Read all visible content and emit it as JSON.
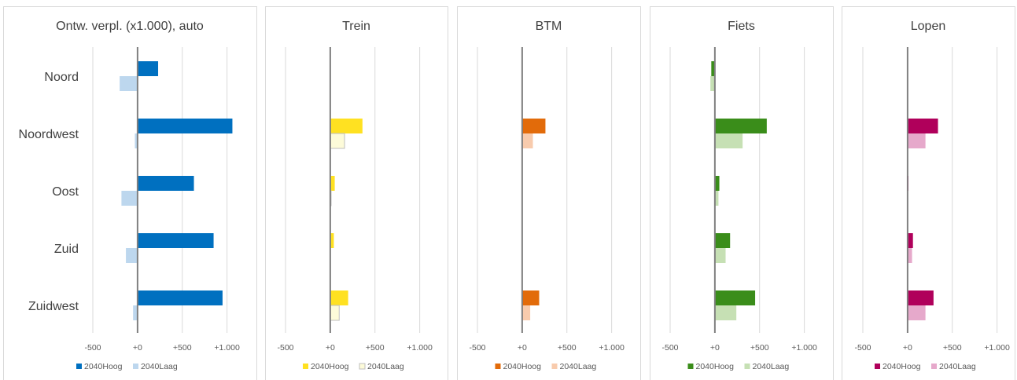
{
  "chart_data": [
    {
      "type": "bar",
      "orientation": "horizontal",
      "title": "Ontw. verpl. (x1.000), auto",
      "categories": [
        "Noord",
        "Noordwest",
        "Oost",
        "Zuid",
        "Zuidwest"
      ],
      "xlim": [
        -500,
        1100
      ],
      "ticks": [
        "-500",
        "+0",
        "+500",
        "+1.000"
      ],
      "tick_values": [
        -500,
        0,
        500,
        1000
      ],
      "grid": true,
      "legend_position": "bottom",
      "series": [
        {
          "name": "2040Hoog",
          "color": "#0070c0",
          "values": [
            230,
            1060,
            630,
            850,
            950
          ]
        },
        {
          "name": "2040Laag",
          "color": "#bdd7ee",
          "values": [
            -200,
            -30,
            -180,
            -130,
            -50
          ]
        }
      ]
    },
    {
      "type": "bar",
      "orientation": "horizontal",
      "title": "Trein",
      "categories": [
        "Noord",
        "Noordwest",
        "Oost",
        "Zuid",
        "Zuidwest"
      ],
      "xlim": [
        -500,
        1100
      ],
      "ticks": [
        "-500",
        "+0",
        "+500",
        "+1.000"
      ],
      "tick_values": [
        -500,
        0,
        500,
        1000
      ],
      "grid": true,
      "legend_position": "bottom",
      "series": [
        {
          "name": "2040Hoog",
          "color": "#ffe121",
          "values": [
            0,
            360,
            50,
            40,
            200
          ]
        },
        {
          "name": "2040Laag",
          "color": "#fdfbd9",
          "values": [
            0,
            160,
            10,
            0,
            100
          ]
        }
      ]
    },
    {
      "type": "bar",
      "orientation": "horizontal",
      "title": "BTM",
      "categories": [
        "Noord",
        "Noordwest",
        "Oost",
        "Zuid",
        "Zuidwest"
      ],
      "xlim": [
        -500,
        1100
      ],
      "ticks": [
        "-500",
        "+0",
        "+500",
        "+1.000"
      ],
      "tick_values": [
        -500,
        0,
        500,
        1000
      ],
      "grid": true,
      "legend_position": "bottom",
      "series": [
        {
          "name": "2040Hoog",
          "color": "#e26b0a",
          "values": [
            0,
            260,
            0,
            0,
            190
          ]
        },
        {
          "name": "2040Laag",
          "color": "#f8cbad",
          "values": [
            0,
            120,
            0,
            0,
            90
          ]
        }
      ]
    },
    {
      "type": "bar",
      "orientation": "horizontal",
      "title": "Fiets",
      "categories": [
        "Noord",
        "Noordwest",
        "Oost",
        "Zuid",
        "Zuidwest"
      ],
      "xlim": [
        -500,
        1100
      ],
      "ticks": [
        "-500",
        "+0",
        "+500",
        "+1.000"
      ],
      "tick_values": [
        -500,
        0,
        500,
        1000
      ],
      "grid": true,
      "legend_position": "bottom",
      "series": [
        {
          "name": "2040Hoog",
          "color": "#3a8d1a",
          "values": [
            -40,
            580,
            50,
            170,
            450
          ]
        },
        {
          "name": "2040Laag",
          "color": "#c6e0b4",
          "values": [
            -50,
            310,
            40,
            120,
            240
          ]
        }
      ]
    },
    {
      "type": "bar",
      "orientation": "horizontal",
      "title": "Lopen",
      "categories": [
        "Noord",
        "Noordwest",
        "Oost",
        "Zuid",
        "Zuidwest"
      ],
      "xlim": [
        -500,
        1100
      ],
      "ticks": [
        "-500",
        "+0",
        "+500",
        "+1.000"
      ],
      "tick_values": [
        -500,
        0,
        500,
        1000
      ],
      "grid": true,
      "legend_position": "bottom",
      "series": [
        {
          "name": "2040Hoog",
          "color": "#b0005b",
          "values": [
            0,
            340,
            10,
            60,
            290
          ]
        },
        {
          "name": "2040Laag",
          "color": "#e6a9cb",
          "values": [
            0,
            200,
            0,
            50,
            200
          ]
        }
      ]
    }
  ]
}
